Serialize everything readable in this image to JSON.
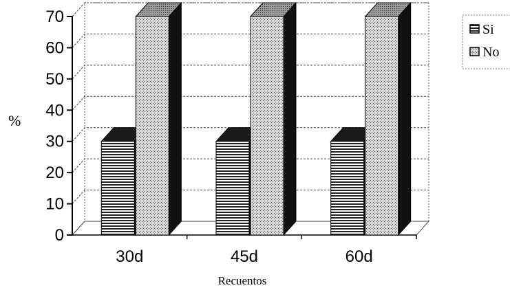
{
  "chart_data": {
    "type": "bar",
    "categories": [
      "30d",
      "45d",
      "60d"
    ],
    "series": [
      {
        "name": "Si",
        "values": [
          30,
          30,
          30
        ],
        "pattern": "horizontal-stripes"
      },
      {
        "name": "No",
        "values": [
          70,
          70,
          70
        ],
        "pattern": "dotted"
      }
    ],
    "title": "",
    "xlabel": "Recuentos",
    "ylabel": "%",
    "ylim": [
      0,
      70
    ],
    "yticks": [
      0,
      10,
      20,
      30,
      40,
      50,
      60,
      70
    ],
    "grid": true,
    "legend": "right",
    "style": "3d-column"
  }
}
